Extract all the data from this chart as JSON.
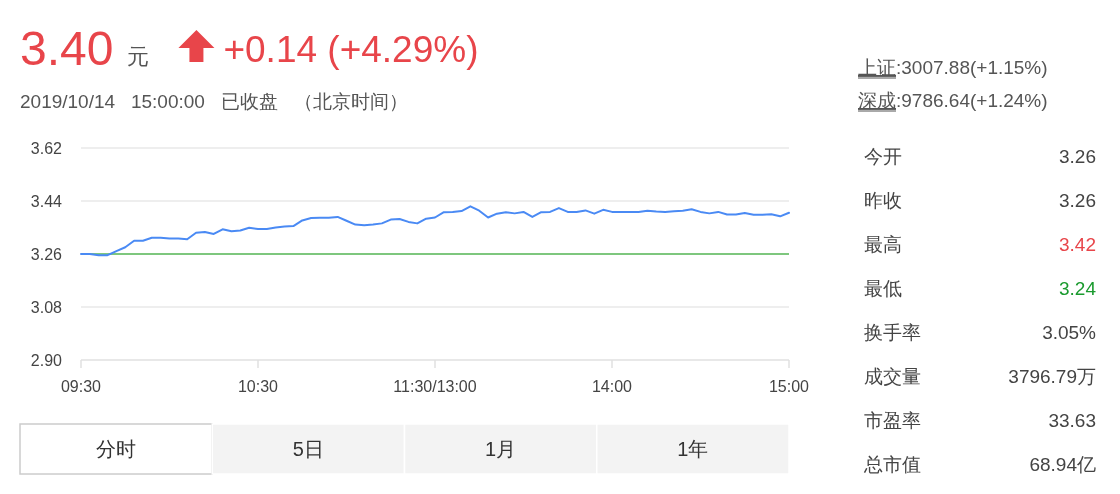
{
  "chart_data": [
    {
      "type": "line",
      "title": "3.40 元 +0.14 (+4.29%)",
      "subtitle": "2019/10/14 15:00:00 已收盘 （北京时间）",
      "categories": [
        "09:30",
        null,
        null,
        null,
        null,
        null,
        null,
        null,
        null,
        null,
        null,
        null,
        null,
        null,
        null,
        null,
        null,
        null,
        null,
        null,
        "10:30",
        null,
        null,
        null,
        null,
        null,
        null,
        null,
        null,
        null,
        null,
        null,
        null,
        null,
        null,
        null,
        null,
        null,
        null,
        null,
        "11:30/13:00",
        null,
        null,
        null,
        null,
        null,
        null,
        null,
        null,
        null,
        null,
        null,
        null,
        null,
        null,
        null,
        null,
        null,
        null,
        null,
        "14:00",
        null,
        null,
        null,
        null,
        null,
        null,
        null,
        null,
        null,
        null,
        null,
        null,
        null,
        null,
        null,
        null,
        null,
        null,
        null,
        "15:00"
      ],
      "series": [
        {
          "color": "#4a8af4",
          "values": [
            3.26,
            3.26,
            3.256,
            3.256,
            3.27,
            3.283,
            3.305,
            3.305,
            3.315,
            3.315,
            3.313,
            3.313,
            3.31,
            3.332,
            3.335,
            3.328,
            3.344,
            3.337,
            3.34,
            3.349,
            3.345,
            3.345,
            3.35,
            3.353,
            3.355,
            3.374,
            3.382,
            3.383,
            3.383,
            3.386,
            3.373,
            3.36,
            3.358,
            3.36,
            3.364,
            3.377,
            3.379,
            3.369,
            3.364,
            3.38,
            3.384,
            3.402,
            3.403,
            3.406,
            3.422,
            3.407,
            3.384,
            3.397,
            3.402,
            3.398,
            3.403,
            3.386,
            3.402,
            3.403,
            3.416,
            3.403,
            3.403,
            3.408,
            3.397,
            3.41,
            3.403,
            3.403,
            3.403,
            3.403,
            3.407,
            3.404,
            3.403,
            3.405,
            3.407,
            3.412,
            3.403,
            3.398,
            3.403,
            3.394,
            3.394,
            3.399,
            3.393,
            3.393,
            3.395,
            3.388,
            3.4
          ]
        }
      ],
      "ylim": [
        2.9,
        3.62
      ],
      "yticks": [
        {
          "value": 2.9,
          "label": "2.90"
        },
        {
          "value": 3.08,
          "label": "3.08"
        },
        {
          "value": 3.26,
          "label": "3.26"
        },
        {
          "value": 3.44,
          "label": "3.44"
        },
        {
          "value": 3.62,
          "label": "3.62"
        }
      ],
      "grid": "y",
      "ref_lines": [
        {
          "axis": "y",
          "value": 3.26,
          "color": "#7ec77e"
        }
      ],
      "annotations": [
        "分时",
        "5日",
        "1月",
        "1年"
      ]
    },
    {
      "type": "other",
      "annotations": [
        "上证:3007.88(+1.15%)",
        "深成:9786.64(+1.24%)",
        "今开",
        "3.26",
        "昨收",
        "3.26",
        "最高",
        "3.42",
        "最低",
        "3.24",
        "换手率",
        "3.05%",
        "成交量",
        "3796.79万",
        "市盈率",
        "33.63",
        "总市值",
        "68.94亿"
      ]
    }
  ]
}
